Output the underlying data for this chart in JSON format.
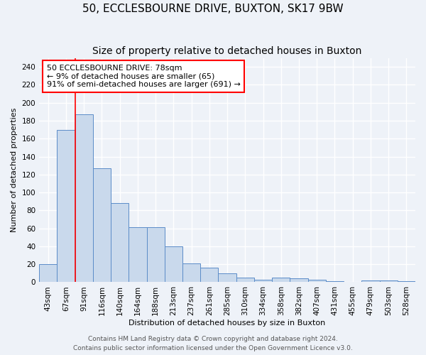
{
  "title": "50, ECCLESBOURNE DRIVE, BUXTON, SK17 9BW",
  "subtitle": "Size of property relative to detached houses in Buxton",
  "xlabel": "Distribution of detached houses by size in Buxton",
  "ylabel": "Number of detached properties",
  "categories": [
    "43sqm",
    "67sqm",
    "91sqm",
    "116sqm",
    "140sqm",
    "164sqm",
    "188sqm",
    "213sqm",
    "237sqm",
    "261sqm",
    "285sqm",
    "310sqm",
    "334sqm",
    "358sqm",
    "382sqm",
    "407sqm",
    "431sqm",
    "455sqm",
    "479sqm",
    "503sqm",
    "528sqm"
  ],
  "values": [
    20,
    170,
    187,
    127,
    88,
    61,
    61,
    40,
    21,
    16,
    10,
    5,
    3,
    5,
    4,
    3,
    1,
    0,
    2,
    2,
    1
  ],
  "bar_color": "#c9d9ec",
  "bar_edge_color": "#5b8cc8",
  "red_line_x": 1.5,
  "annotation_title": "50 ECCLESBOURNE DRIVE: 78sqm",
  "annotation_line1": "← 9% of detached houses are smaller (65)",
  "annotation_line2": "91% of semi-detached houses are larger (691) →",
  "ylim": [
    0,
    250
  ],
  "yticks": [
    0,
    20,
    40,
    60,
    80,
    100,
    120,
    140,
    160,
    180,
    200,
    220,
    240
  ],
  "footer1": "Contains HM Land Registry data © Crown copyright and database right 2024.",
  "footer2": "Contains public sector information licensed under the Open Government Licence v3.0.",
  "background_color": "#eef2f8",
  "grid_color": "#ffffff",
  "title_fontsize": 11,
  "subtitle_fontsize": 10,
  "axis_label_fontsize": 8,
  "tick_fontsize": 7.5,
  "annotation_fontsize": 8,
  "footer_fontsize": 6.5
}
